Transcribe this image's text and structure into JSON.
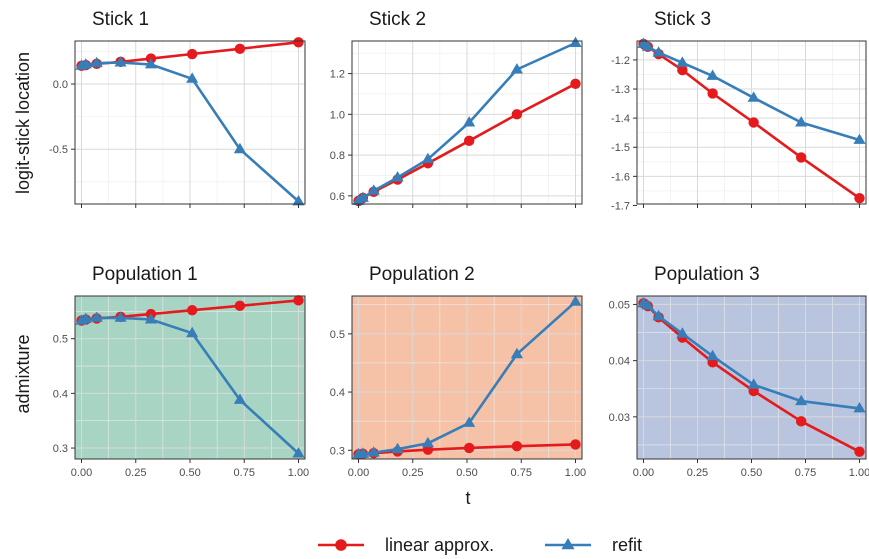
{
  "figure": {
    "xlabel": "t",
    "row_ylabels": [
      "logit-stick location",
      "admixture"
    ],
    "legend": [
      {
        "label": "linear approx.",
        "color": "#e41a1c",
        "marker": "circle"
      },
      {
        "label": "refit",
        "color": "#377eb8",
        "marker": "triangle"
      }
    ]
  },
  "chart_data": [
    {
      "type": "line",
      "title": "Stick 1",
      "background": "#ffffff",
      "x": [
        0,
        0.02,
        0.07,
        0.18,
        0.32,
        0.51,
        0.73,
        1.0
      ],
      "xlim": [
        -0.03,
        1.03
      ],
      "ylim": [
        -0.92,
        0.33
      ],
      "xticks": [
        0,
        0.25,
        0.5,
        0.75,
        1.0
      ],
      "xticklabels": [],
      "yticks": [
        0.0,
        -0.5
      ],
      "yticklabels": [
        "0.0",
        "-0.5"
      ],
      "series": [
        {
          "name": "linear approx.",
          "color": "#e41a1c",
          "marker": "circle",
          "values": [
            0.14,
            0.145,
            0.155,
            0.17,
            0.195,
            0.23,
            0.27,
            0.32
          ]
        },
        {
          "name": "refit",
          "color": "#377eb8",
          "marker": "triangle",
          "values": [
            0.14,
            0.15,
            0.16,
            0.165,
            0.15,
            0.04,
            -0.5,
            -0.9
          ]
        }
      ]
    },
    {
      "type": "line",
      "title": "Stick 2",
      "background": "#ffffff",
      "x": [
        0,
        0.02,
        0.07,
        0.18,
        0.32,
        0.51,
        0.73,
        1.0
      ],
      "xlim": [
        -0.03,
        1.03
      ],
      "ylim": [
        0.56,
        1.36
      ],
      "xticks": [
        0,
        0.25,
        0.5,
        0.75,
        1.0
      ],
      "xticklabels": [],
      "yticks": [
        0.6,
        0.8,
        1.0,
        1.2
      ],
      "yticklabels": [
        "0.6",
        "0.8",
        "1.0",
        "1.2"
      ],
      "series": [
        {
          "name": "linear approx.",
          "color": "#e41a1c",
          "marker": "circle",
          "values": [
            0.575,
            0.59,
            0.62,
            0.68,
            0.76,
            0.87,
            1.0,
            1.15
          ]
        },
        {
          "name": "refit",
          "color": "#377eb8",
          "marker": "triangle",
          "values": [
            0.575,
            0.59,
            0.625,
            0.69,
            0.78,
            0.96,
            1.22,
            1.35
          ]
        }
      ]
    },
    {
      "type": "line",
      "title": "Stick 3",
      "background": "#ffffff",
      "x": [
        0,
        0.02,
        0.07,
        0.18,
        0.32,
        0.51,
        0.73,
        1.0
      ],
      "xlim": [
        -0.03,
        1.03
      ],
      "ylim": [
        -1.695,
        -1.135
      ],
      "xticks": [
        0,
        0.25,
        0.5,
        0.75,
        1.0
      ],
      "xticklabels": [],
      "yticks": [
        -1.2,
        -1.3,
        -1.4,
        -1.5,
        -1.6,
        -1.7
      ],
      "yticklabels": [
        "-1.2",
        "-1.3",
        "-1.4",
        "-1.5",
        "-1.6",
        "-1.7"
      ],
      "series": [
        {
          "name": "linear approx.",
          "color": "#e41a1c",
          "marker": "circle",
          "values": [
            -1.145,
            -1.155,
            -1.18,
            -1.235,
            -1.315,
            -1.415,
            -1.535,
            -1.675
          ]
        },
        {
          "name": "refit",
          "color": "#377eb8",
          "marker": "triangle",
          "values": [
            -1.145,
            -1.155,
            -1.175,
            -1.21,
            -1.255,
            -1.33,
            -1.415,
            -1.475
          ]
        }
      ]
    },
    {
      "type": "line",
      "title": "Population 1",
      "background": "#a8d4c4",
      "x": [
        0,
        0.02,
        0.07,
        0.18,
        0.32,
        0.51,
        0.73,
        1.0
      ],
      "xlim": [
        -0.03,
        1.03
      ],
      "ylim": [
        0.28,
        0.578
      ],
      "xticks": [
        0,
        0.25,
        0.5,
        0.75,
        1.0
      ],
      "xticklabels": [
        "0.00",
        "0.25",
        "0.50",
        "0.75",
        "1.00"
      ],
      "yticks": [
        0.3,
        0.4,
        0.5
      ],
      "yticklabels": [
        "0.3",
        "0.4",
        "0.5"
      ],
      "series": [
        {
          "name": "linear approx.",
          "color": "#e41a1c",
          "marker": "circle",
          "values": [
            0.533,
            0.535,
            0.537,
            0.54,
            0.545,
            0.552,
            0.56,
            0.57
          ]
        },
        {
          "name": "refit",
          "color": "#377eb8",
          "marker": "triangle",
          "values": [
            0.533,
            0.536,
            0.538,
            0.538,
            0.535,
            0.51,
            0.388,
            0.29
          ]
        }
      ]
    },
    {
      "type": "line",
      "title": "Population 2",
      "background": "#f5c2a8",
      "x": [
        0,
        0.02,
        0.07,
        0.18,
        0.32,
        0.51,
        0.73,
        1.0
      ],
      "xlim": [
        -0.03,
        1.03
      ],
      "ylim": [
        0.285,
        0.565
      ],
      "xticks": [
        0,
        0.25,
        0.5,
        0.75,
        1.0
      ],
      "xticklabels": [
        "0.00",
        "0.25",
        "0.50",
        "0.75",
        "1.00"
      ],
      "yticks": [
        0.3,
        0.4,
        0.5
      ],
      "yticklabels": [
        "0.3",
        "0.4",
        "0.5"
      ],
      "series": [
        {
          "name": "linear approx.",
          "color": "#e41a1c",
          "marker": "circle",
          "values": [
            0.293,
            0.294,
            0.295,
            0.298,
            0.301,
            0.304,
            0.307,
            0.31
          ]
        },
        {
          "name": "refit",
          "color": "#377eb8",
          "marker": "triangle",
          "values": [
            0.293,
            0.294,
            0.296,
            0.302,
            0.312,
            0.347,
            0.465,
            0.555
          ]
        }
      ]
    },
    {
      "type": "line",
      "title": "Population 3",
      "background": "#b9c4de",
      "x": [
        0,
        0.02,
        0.07,
        0.18,
        0.32,
        0.51,
        0.73,
        1.0
      ],
      "xlim": [
        -0.03,
        1.03
      ],
      "ylim": [
        0.0225,
        0.0515
      ],
      "xticks": [
        0,
        0.25,
        0.5,
        0.75,
        1.0
      ],
      "xticklabels": [
        "0.00",
        "0.25",
        "0.50",
        "0.75",
        "1.00"
      ],
      "yticks": [
        0.03,
        0.04,
        0.05
      ],
      "yticklabels": [
        "0.03",
        "0.04",
        "0.05"
      ],
      "series": [
        {
          "name": "linear approx.",
          "color": "#e41a1c",
          "marker": "circle",
          "values": [
            0.0502,
            0.0497,
            0.0477,
            0.0441,
            0.0397,
            0.0346,
            0.0292,
            0.0238
          ]
        },
        {
          "name": "refit",
          "color": "#377eb8",
          "marker": "triangle",
          "values": [
            0.0502,
            0.0498,
            0.0479,
            0.0448,
            0.0408,
            0.0357,
            0.0328,
            0.0315
          ]
        }
      ]
    }
  ]
}
